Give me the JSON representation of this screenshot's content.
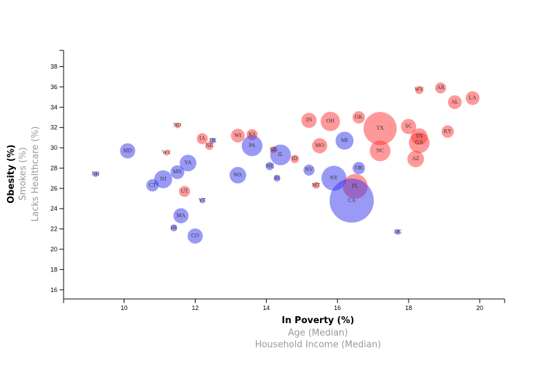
{
  "chart_data": {
    "type": "scatter",
    "x_axis": {
      "options": [
        "In Poverty (%)",
        "Age (Median)",
        "Household Income (Median)"
      ],
      "active": 0,
      "domain": [
        8.3,
        20.7
      ],
      "ticks": [
        10,
        12,
        14,
        16,
        18,
        20
      ]
    },
    "y_axis": {
      "options": [
        "Obesity (%)",
        "Smokes (%)",
        "Lacks Healthcare (%)"
      ],
      "active": 0,
      "domain": [
        15.1,
        39.6
      ],
      "ticks": [
        16,
        18,
        20,
        22,
        24,
        26,
        28,
        30,
        32,
        34,
        36,
        38
      ]
    },
    "colors": {
      "blue": "#3333ee",
      "red": "#ff3333"
    },
    "points": [
      {
        "abbr": "NH",
        "x": 9.2,
        "y": 27.4,
        "r": 4,
        "color": "blue"
      },
      {
        "abbr": "MD",
        "x": 10.1,
        "y": 29.7,
        "r": 11,
        "color": "blue"
      },
      {
        "abbr": "CT",
        "x": 10.8,
        "y": 26.3,
        "r": 9,
        "color": "blue"
      },
      {
        "abbr": "NJ",
        "x": 11.1,
        "y": 26.9,
        "r": 13,
        "color": "blue"
      },
      {
        "abbr": "WY",
        "x": 11.2,
        "y": 29.5,
        "r": 4,
        "color": "red"
      },
      {
        "abbr": "MN",
        "x": 11.5,
        "y": 27.6,
        "r": 10,
        "color": "blue"
      },
      {
        "abbr": "ND",
        "x": 11.5,
        "y": 32.2,
        "r": 4,
        "color": "red"
      },
      {
        "abbr": "UT",
        "x": 11.7,
        "y": 25.7,
        "r": 8,
        "color": "red"
      },
      {
        "abbr": "VA",
        "x": 11.8,
        "y": 28.5,
        "r": 12,
        "color": "blue"
      },
      {
        "abbr": "HI",
        "x": 11.4,
        "y": 22.1,
        "r": 5,
        "color": "blue"
      },
      {
        "abbr": "MA",
        "x": 11.6,
        "y": 23.3,
        "r": 11,
        "color": "blue"
      },
      {
        "abbr": "CO",
        "x": 12.0,
        "y": 21.3,
        "r": 11,
        "color": "blue"
      },
      {
        "abbr": "IA",
        "x": 12.2,
        "y": 30.9,
        "r": 8,
        "color": "red"
      },
      {
        "abbr": "VT",
        "x": 12.2,
        "y": 24.8,
        "r": 4,
        "color": "blue"
      },
      {
        "abbr": "DE",
        "x": 12.5,
        "y": 30.7,
        "r": 4,
        "color": "blue"
      },
      {
        "abbr": "NE",
        "x": 12.4,
        "y": 30.2,
        "r": 6,
        "color": "red"
      },
      {
        "abbr": "WA",
        "x": 13.2,
        "y": 27.3,
        "r": 12,
        "color": "blue"
      },
      {
        "abbr": "WI",
        "x": 13.2,
        "y": 31.2,
        "r": 10,
        "color": "red"
      },
      {
        "abbr": "KS",
        "x": 13.6,
        "y": 31.3,
        "r": 8,
        "color": "red"
      },
      {
        "abbr": "PA",
        "x": 13.6,
        "y": 30.2,
        "r": 15,
        "color": "blue"
      },
      {
        "abbr": "SD",
        "x": 14.2,
        "y": 29.8,
        "r": 5,
        "color": "red"
      },
      {
        "abbr": "ME",
        "x": 14.1,
        "y": 28.2,
        "r": 6,
        "color": "blue"
      },
      {
        "abbr": "IL",
        "x": 14.4,
        "y": 29.3,
        "r": 15,
        "color": "blue"
      },
      {
        "abbr": "RI",
        "x": 14.3,
        "y": 27.0,
        "r": 5,
        "color": "blue"
      },
      {
        "abbr": "ID",
        "x": 14.8,
        "y": 28.9,
        "r": 6,
        "color": "red"
      },
      {
        "abbr": "NV",
        "x": 15.2,
        "y": 27.8,
        "r": 8,
        "color": "blue"
      },
      {
        "abbr": "IN",
        "x": 15.2,
        "y": 32.7,
        "r": 11,
        "color": "red"
      },
      {
        "abbr": "MT",
        "x": 15.4,
        "y": 26.3,
        "r": 5,
        "color": "red"
      },
      {
        "abbr": "MO",
        "x": 15.5,
        "y": 30.2,
        "r": 11,
        "color": "red"
      },
      {
        "abbr": "OH",
        "x": 15.8,
        "y": 32.6,
        "r": 14,
        "color": "red"
      },
      {
        "abbr": "NY",
        "x": 15.9,
        "y": 27.0,
        "r": 18,
        "color": "blue"
      },
      {
        "abbr": "MI",
        "x": 16.2,
        "y": 30.7,
        "r": 13,
        "color": "blue"
      },
      {
        "abbr": "FL",
        "x": 16.5,
        "y": 26.2,
        "r": 18,
        "color": "red"
      },
      {
        "abbr": "CA",
        "x": 16.4,
        "y": 24.8,
        "r": 32,
        "color": "blue"
      },
      {
        "abbr": "OK",
        "x": 16.6,
        "y": 33.0,
        "r": 9,
        "color": "red"
      },
      {
        "abbr": "OR",
        "x": 16.6,
        "y": 28.0,
        "r": 9,
        "color": "blue"
      },
      {
        "abbr": "DC",
        "x": 17.7,
        "y": 21.7,
        "r": 4,
        "color": "blue"
      },
      {
        "abbr": "NC",
        "x": 17.2,
        "y": 29.7,
        "r": 15,
        "color": "red"
      },
      {
        "abbr": "TX",
        "x": 17.2,
        "y": 31.9,
        "r": 24,
        "color": "red"
      },
      {
        "abbr": "SC",
        "x": 18.0,
        "y": 32.1,
        "r": 11,
        "color": "red"
      },
      {
        "abbr": "WV",
        "x": 18.3,
        "y": 35.7,
        "r": 6,
        "color": "red"
      },
      {
        "abbr": "TN",
        "x": 18.3,
        "y": 31.1,
        "r": 12,
        "color": "red"
      },
      {
        "abbr": "GA",
        "x": 18.3,
        "y": 30.5,
        "r": 15,
        "color": "red"
      },
      {
        "abbr": "AZ",
        "x": 18.2,
        "y": 28.9,
        "r": 12,
        "color": "red"
      },
      {
        "abbr": "AR",
        "x": 18.9,
        "y": 35.9,
        "r": 8,
        "color": "red"
      },
      {
        "abbr": "KY",
        "x": 19.1,
        "y": 31.6,
        "r": 9,
        "color": "red"
      },
      {
        "abbr": "AL",
        "x": 19.3,
        "y": 34.5,
        "r": 10,
        "color": "red"
      },
      {
        "abbr": "LA",
        "x": 19.8,
        "y": 34.9,
        "r": 10,
        "color": "red"
      }
    ]
  }
}
